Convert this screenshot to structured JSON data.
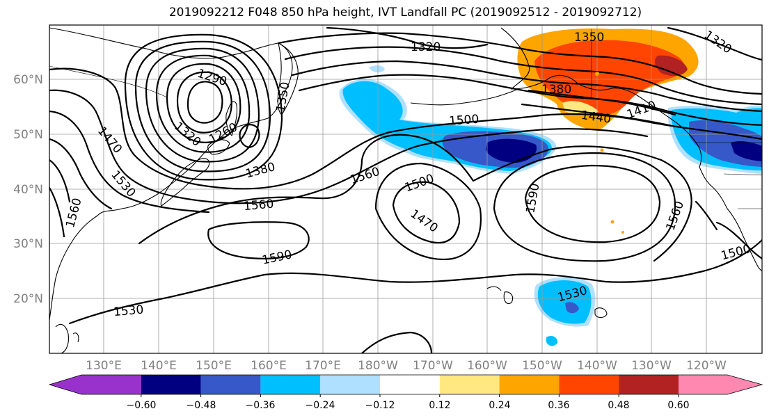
{
  "title": "2019092212 F048 850 hPa height, IVT Landfall PC (2019092512 - 2019092712)",
  "lat_labels": [
    "60°N",
    "50°N",
    "40°N",
    "30°N",
    "20°N"
  ],
  "lon_labels": [
    "130°E",
    "140°E",
    "150°E",
    "160°E",
    "170°E",
    "180°W",
    "170°W",
    "160°W",
    "150°W",
    "140°W",
    "130°W",
    "120°W"
  ],
  "contour_labels": [
    "1290",
    "1260",
    "1320",
    "1350",
    "1380",
    "1470",
    "1530",
    "1560",
    "1320",
    "1350",
    "1380",
    "1440",
    "1410",
    "1320",
    "1500",
    "1560",
    "1500",
    "1470",
    "1590",
    "1560",
    "1560",
    "1590",
    "1530",
    "1530",
    "1500"
  ],
  "colorbar": {
    "colors": [
      "#9932cc",
      "#000080",
      "#3658c8",
      "#00bfff",
      "#b0e0ff",
      "#ffffff",
      "#ffe880",
      "#ffa500",
      "#ff4500",
      "#b22222",
      "#ff88b0"
    ],
    "tick_labels": [
      "−0.60",
      "−0.48",
      "−0.36",
      "−0.24",
      "−0.12",
      "0.12",
      "0.24",
      "0.36",
      "0.48",
      "0.60"
    ]
  }
}
